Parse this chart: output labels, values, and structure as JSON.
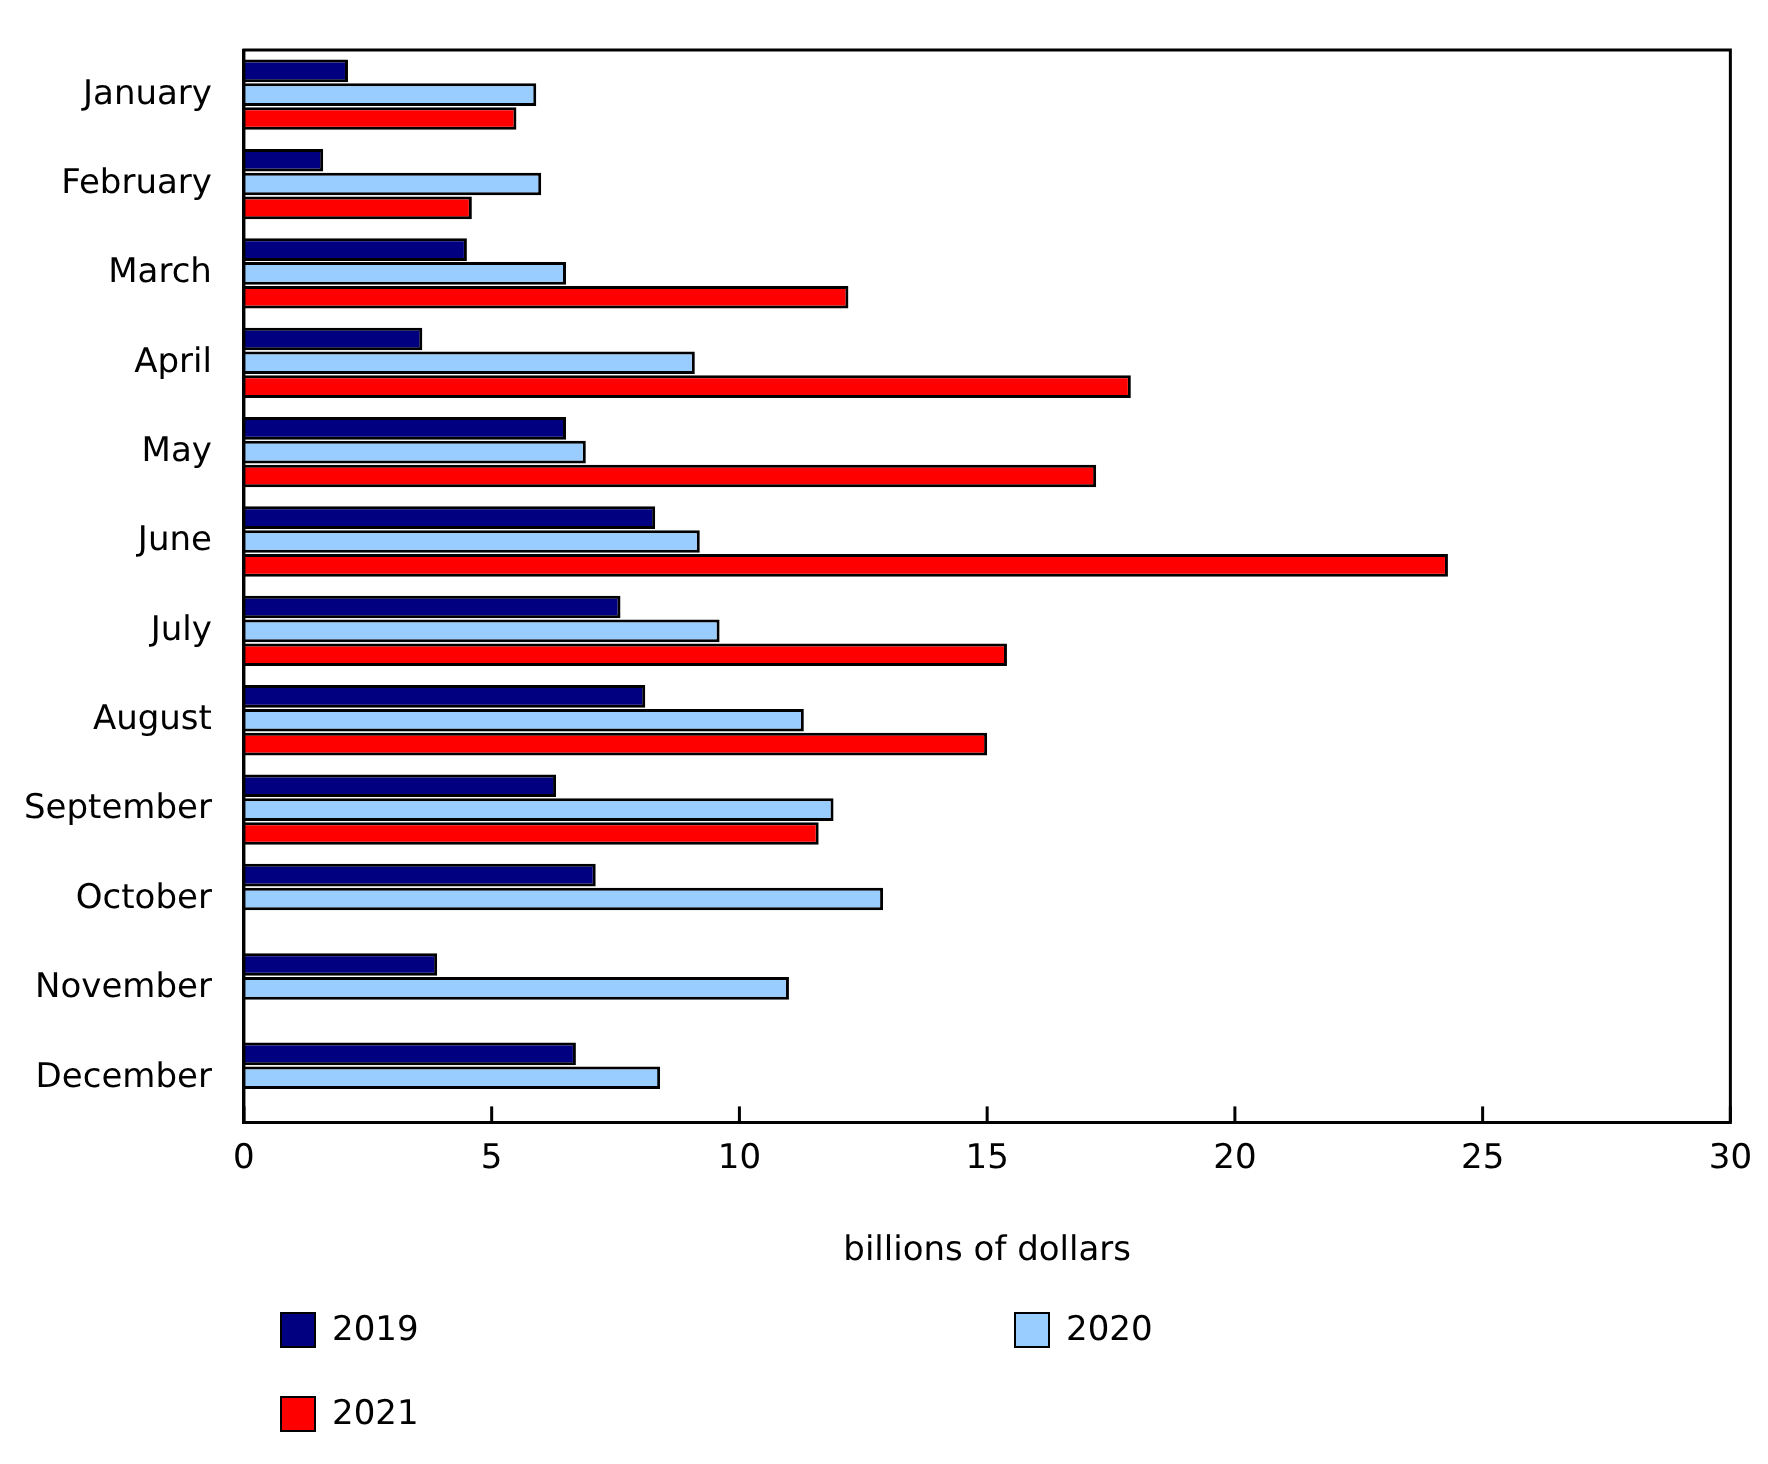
{
  "chart_data": {
    "type": "bar",
    "orientation": "horizontal",
    "xlabel": "billions of dollars",
    "categories": [
      "January",
      "February",
      "March",
      "April",
      "May",
      "June",
      "July",
      "August",
      "September",
      "October",
      "November",
      "December"
    ],
    "series": [
      {
        "name": "2019",
        "color": "#000080",
        "values": [
          2.1,
          1.6,
          4.5,
          3.6,
          6.5,
          8.3,
          7.6,
          8.1,
          6.3,
          7.1,
          3.9,
          6.7
        ]
      },
      {
        "name": "2020",
        "color": "#99ccff",
        "values": [
          5.9,
          6.0,
          6.5,
          9.1,
          6.9,
          9.2,
          9.6,
          11.3,
          11.9,
          12.9,
          11.0,
          8.4
        ]
      },
      {
        "name": "2021",
        "color": "#ff0000",
        "values": [
          5.5,
          4.6,
          12.2,
          17.9,
          17.2,
          24.3,
          15.4,
          15.0,
          11.6,
          null,
          null,
          null
        ]
      }
    ],
    "xlim": [
      0,
      30
    ],
    "xticks": [
      0,
      5,
      10,
      15,
      20,
      25,
      30
    ],
    "grid": false,
    "legend": "bottom"
  }
}
